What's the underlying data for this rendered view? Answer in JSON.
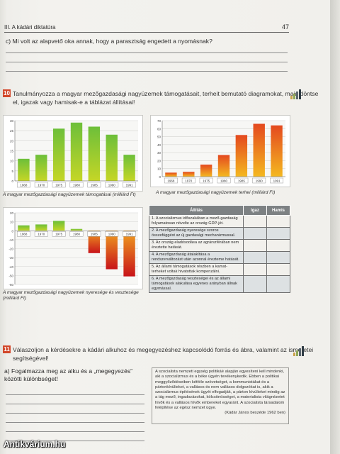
{
  "header": {
    "section": "III. A kádári diktatúra",
    "page": "47"
  },
  "question_c": "c) Mi volt az alapvető oka annak, hogy a parasztság engedett a nyomásnak?",
  "task10": {
    "number": "10",
    "text_line1": "Tanulmányozza a magyar mezőgazdasági nagyüzemek támogatásait, terheit bemutató diagramokat, majd döntse",
    "text_line2": "el, igazak vagy hamisak-e a táblázat állításai!"
  },
  "chart_data": [
    {
      "type": "bar",
      "title": "",
      "categories": [
        "1968",
        "1970",
        "1975",
        "1980",
        "1985",
        "1990",
        "1991"
      ],
      "values": [
        11,
        13,
        26,
        29,
        27,
        23,
        13
      ],
      "ylim": [
        0,
        30
      ],
      "yticks": [
        "0",
        "5",
        "10",
        "15",
        "20",
        "25",
        "30"
      ],
      "caption": "A magyar mezőgazdasági nagyüzemek támogatásai (milliárd Ft)"
    },
    {
      "type": "bar",
      "title": "",
      "categories": [
        "1968",
        "1970",
        "1975",
        "1980",
        "1985",
        "1990",
        "1991"
      ],
      "values": [
        5,
        6,
        15,
        27,
        52,
        66,
        64
      ],
      "ylim": [
        0,
        70
      ],
      "yticks": [
        "0",
        "10",
        "20",
        "30",
        "40",
        "50",
        "60",
        "70"
      ],
      "caption": "A magyar mezőgazdasági nagyüzemek terhei (milliárd Ft)"
    },
    {
      "type": "bar",
      "title": "",
      "categories": [
        "1968",
        "1970",
        "1975",
        "1980",
        "1985",
        "1990",
        "1991"
      ],
      "values": [
        6,
        7,
        11,
        2,
        -25,
        -43,
        -51
      ],
      "ylim": [
        -60,
        20
      ],
      "yticks": [
        "-60",
        "-50",
        "-40",
        "-30",
        "-20",
        "-10",
        "0",
        "10",
        "20"
      ],
      "caption": "A magyar mezőgazdasági nagyüzemek nyeresége és vesztesége (milliárd Ft)"
    }
  ],
  "table": {
    "headers": [
      "Állítás",
      "Igaz",
      "Hamis"
    ],
    "rows": [
      "1. A szocializmus időszakában a mező-gazdaság folyamatosan növelte az ország GDP-jét.",
      "2. A mezőgazdaság nyeresége szoros összefüggést az új gazdasági mechanizmussal.",
      "3. Az ország eladósodása az agrárszférában nem éreztette hatását.",
      "4. A mezőgazdaság átalakítása a rendszerváltozást után azonnal érezteme hatását.",
      "5. Az állami támogatások részben a kamat-terheket voltak hivatottak kompenzálni.",
      "6. A mezőgazdaság veszteségei és az állami támogatások alakulása egyenes arányban állnak egymással."
    ]
  },
  "task11": {
    "number": "11",
    "text_line1": "Válaszoljon a kérdésekre a kádári alkuhoz és megegyezéshez kapcsolódó forrás és ábra, valamint az ismeretei",
    "text_line2": "segítségével!"
  },
  "question_a": "a) Fogalmazza meg az alku és a „megegyezés” közötti különbséget!",
  "quote": {
    "text": "A szocialista nemzeti egység politikáé alapján egyesíteni kell mindenki, aki a szocializmus és a béke ügyén tevékenykedik. Ebben a politikai meggyőződéseiben kétféle szövetséget, a kommunistákat és a pártonkívülieket, a vallásos és nem vallásos dolgozókat is, akik a szocializmus építésének ügyét elfogadják, a párton kívülieket mindig az a tág mező, ingadozásokat, kölcsönösséget, a materialista világnézetet hivők és a vallásos hívők embereket egyaránt. A szocialista társadalom felépítése az egész nemzet ügye.",
    "source": "(Kádár János beszéde 1962 ben)"
  },
  "watermark": "Antikvárium.hu",
  "colors": {
    "task_badge": "#d2472a",
    "table_header": "#7d8183",
    "table_alt": "#dde1e3"
  }
}
